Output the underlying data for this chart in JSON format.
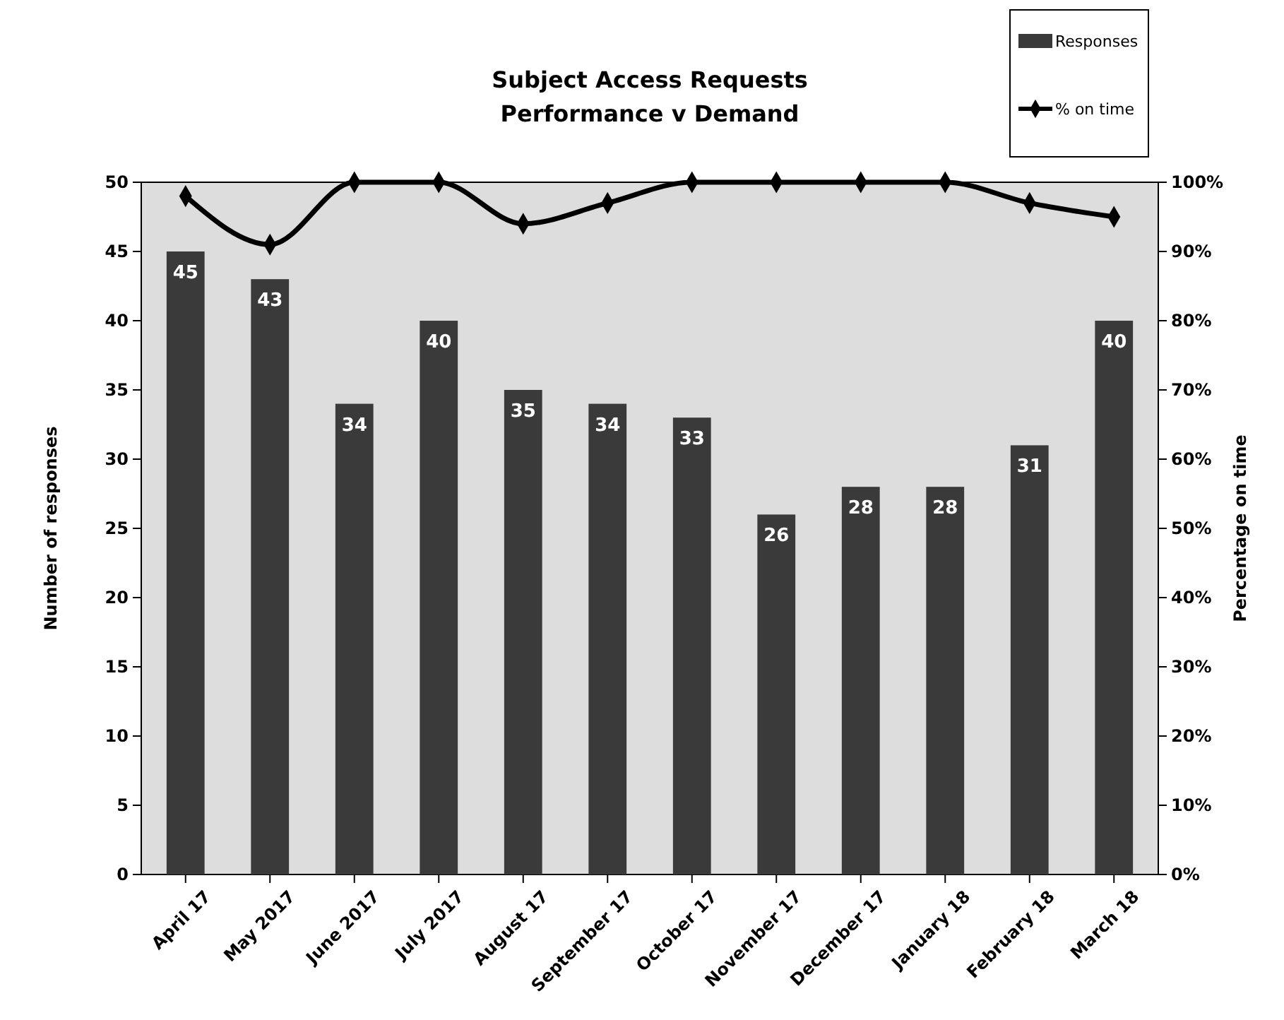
{
  "chart_data": {
    "type": "bar",
    "title": "Subject Access Requests\nPerformance v Demand",
    "ylabel": "Number of responses",
    "y2label": "Percentage on time",
    "categories": [
      "April 17",
      "May 2017",
      "June 2017",
      "July 2017",
      "August 17",
      "September 17",
      "October 17",
      "November 17",
      "December 17",
      "January 18",
      "February 18",
      "March 18"
    ],
    "series": [
      {
        "name": "Responses",
        "color": "#3a3a3a",
        "values": [
          45,
          43,
          34,
          40,
          35,
          34,
          33,
          26,
          28,
          28,
          31,
          40
        ],
        "value_labels": [
          "45",
          "43",
          "34",
          "40",
          "35",
          "34",
          "33",
          "26",
          "28",
          "28",
          "31",
          "40"
        ]
      },
      {
        "name": "% on time",
        "type": "line",
        "axis": "y2",
        "color": "#000000",
        "marker": "diamond",
        "values": [
          98,
          91,
          100,
          100,
          94,
          97,
          100,
          100,
          100,
          100,
          97,
          95
        ]
      }
    ],
    "ylim": [
      0,
      50
    ],
    "yticks": [
      0,
      5,
      10,
      15,
      20,
      25,
      30,
      35,
      40,
      45,
      50
    ],
    "y2lim": [
      0,
      100
    ],
    "y2ticks": [
      {
        "value": 0,
        "label": "0%"
      },
      {
        "value": 10,
        "label": "10%"
      },
      {
        "value": 20,
        "label": "20%"
      },
      {
        "value": 30,
        "label": "30%"
      },
      {
        "value": 40,
        "label": "40%"
      },
      {
        "value": 50,
        "label": "50%"
      },
      {
        "value": 60,
        "label": "60%"
      },
      {
        "value": 70,
        "label": "70%"
      },
      {
        "value": 80,
        "label": "80%"
      },
      {
        "value": 90,
        "label": "90%"
      },
      {
        "value": 100,
        "label": "100%"
      }
    ],
    "grid": false,
    "legend": "top right"
  }
}
